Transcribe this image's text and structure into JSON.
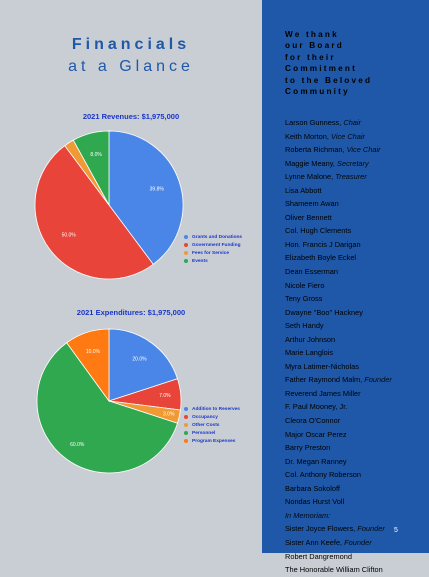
{
  "heading": {
    "line1": "Financials",
    "line2": "at a Glance"
  },
  "chart_data": [
    {
      "type": "pie",
      "title": "2021 Revenues: $1,975,000",
      "categories": [
        "Grants and Donations",
        "Government Funding",
        "Fees for Service",
        "Events"
      ],
      "values": [
        39.8,
        50.0,
        2.2,
        8.0
      ],
      "labels": [
        "39.8%",
        "50.0%",
        "",
        "8.0%"
      ],
      "colors": [
        "#4a86e8",
        "#e8443a",
        "#f09a36",
        "#2fa84f"
      ],
      "legend": "right"
    },
    {
      "type": "pie",
      "title": "2021 Expenditures: $1,975,000",
      "categories": [
        "Addition to Reserves",
        "Occupancy",
        "Other Costs",
        "Personnel",
        "Program Expenses"
      ],
      "values": [
        20.0,
        7.0,
        3.0,
        60.0,
        10.0
      ],
      "labels": [
        "20.0%",
        "7.0%",
        "3.0%",
        "60.0%",
        "10.0%"
      ],
      "colors": [
        "#4a86e8",
        "#e8443a",
        "#f09a36",
        "#2fa84f",
        "#ff7a12"
      ],
      "legend": "right"
    }
  ],
  "thanks": [
    "We thank",
    "our Board",
    "for their",
    "Commitment",
    "to the Beloved",
    "Community"
  ],
  "board": [
    {
      "name": "Larson Gunness,",
      "role": "Chair"
    },
    {
      "name": "Keith Morton,",
      "role": "Vice Chair"
    },
    {
      "name": "Roberta Richman,",
      "role": "Vice Chair"
    },
    {
      "name": "Maggie Meany,",
      "role": "Secretary"
    },
    {
      "name": "Lynne Malone,",
      "role": "Treasurer"
    },
    {
      "name": "Lisa Abbott",
      "role": ""
    },
    {
      "name": "Shameem Awan",
      "role": ""
    },
    {
      "name": "Oliver Bennett",
      "role": ""
    },
    {
      "name": "Col. Hugh Clements",
      "role": ""
    },
    {
      "name": "Hon. Francis J Darigan",
      "role": ""
    },
    {
      "name": "Elizabeth Boyle Eckel",
      "role": ""
    },
    {
      "name": "Dean Esserman",
      "role": ""
    },
    {
      "name": "Nicole Fiero",
      "role": ""
    },
    {
      "name": "Teny Gross",
      "role": ""
    },
    {
      "name": "Dwayne \"Boo\" Hackney",
      "role": ""
    },
    {
      "name": "Seth Handy",
      "role": ""
    },
    {
      "name": "Arthur Johnson",
      "role": ""
    },
    {
      "name": "Marie Langlois",
      "role": ""
    },
    {
      "name": "Myra Latimer-Nicholas",
      "role": ""
    },
    {
      "name": "Father Raymond Malm,",
      "role": "Founder"
    },
    {
      "name": "Reverend James Miller",
      "role": ""
    },
    {
      "name": "F. Paul Mooney, Jr.",
      "role": ""
    },
    {
      "name": "Cleora O'Connor",
      "role": ""
    },
    {
      "name": "Major Oscar Perez",
      "role": ""
    },
    {
      "name": "Barry Preston",
      "role": ""
    },
    {
      "name": "Dr. Megan Ranney",
      "role": ""
    },
    {
      "name": "Col. Anthony Roberson",
      "role": ""
    },
    {
      "name": "Barbara Sokoloff",
      "role": ""
    },
    {
      "name": "Nondas Hurst Voll",
      "role": ""
    },
    {
      "name": "",
      "role": "In Memoriam:"
    },
    {
      "name": "Sister Joyce Flowers,",
      "role": "Founder"
    },
    {
      "name": "Sister Ann Keefe,",
      "role": "Founder"
    },
    {
      "name": "Robert Dangremond",
      "role": ""
    },
    {
      "name": "The Honorable William Clifton",
      "role": ""
    }
  ],
  "page_number": "5"
}
